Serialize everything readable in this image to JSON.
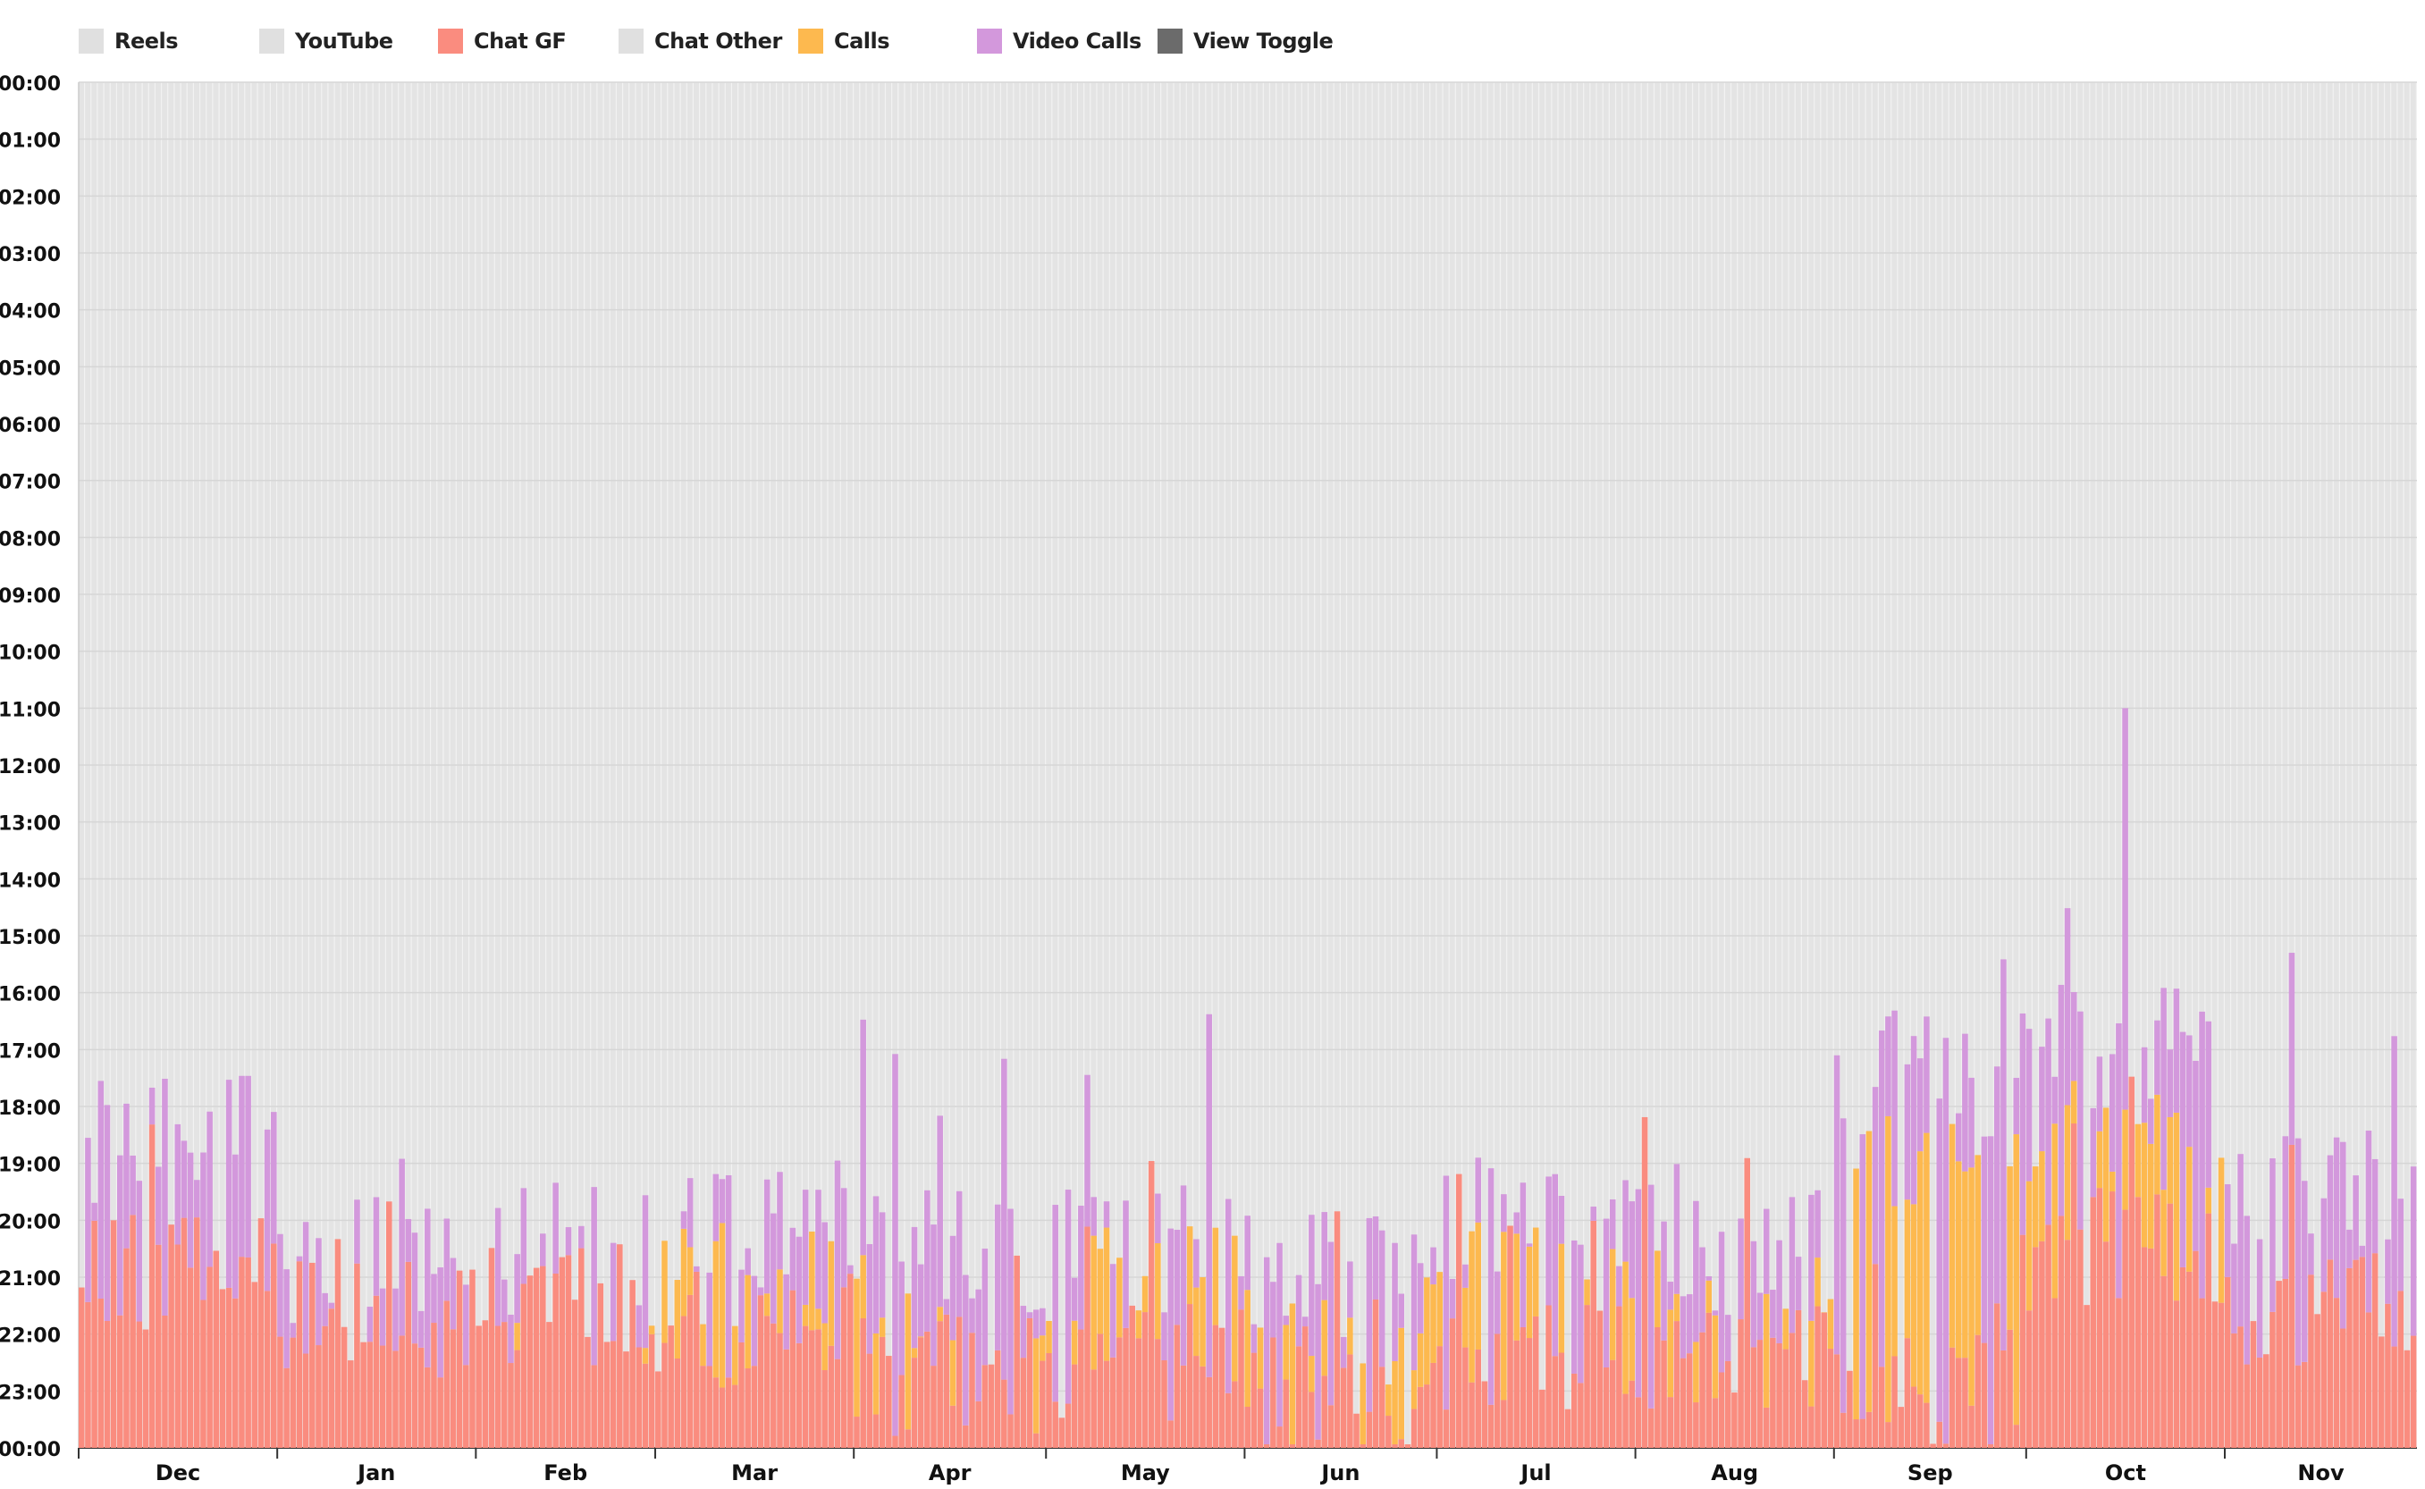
{
  "legend": [
    {
      "label": "Reels",
      "color": "#e0e0e0"
    },
    {
      "label": "YouTube",
      "color": "#e0e0e0"
    },
    {
      "label": "Chat GF",
      "color": "#fa8c7f"
    },
    {
      "label": "Chat Other",
      "color": "#e0e0e0"
    },
    {
      "label": "Calls",
      "color": "#fdb94f"
    },
    {
      "label": "Video Calls",
      "color": "#d398dc"
    },
    {
      "label": "View Toggle",
      "color": "#6b6b6b"
    }
  ],
  "chart_data": {
    "type": "bar",
    "stacked": true,
    "orientation": "vertical",
    "x_axis": "date",
    "y_axis": "time of day",
    "y_reversed": true,
    "ylim": [
      "00:00",
      "00:00"
    ],
    "y_ticks": [
      "00:00",
      "01:00",
      "02:00",
      "03:00",
      "04:00",
      "05:00",
      "06:00",
      "07:00",
      "08:00",
      "09:00",
      "10:00",
      "11:00",
      "12:00",
      "13:00",
      "14:00",
      "15:00",
      "16:00",
      "17:00",
      "18:00",
      "19:00",
      "20:00",
      "21:00",
      "22:00",
      "23:00",
      "00:00"
    ],
    "x_ticks": [
      "Dec",
      "Jan",
      "Feb",
      "Mar",
      "Apr",
      "May",
      "Jun",
      "Jul",
      "Aug",
      "Sep",
      "Oct",
      "Nov"
    ],
    "grid": true,
    "legend_position": "top-left",
    "series": [
      {
        "name": "Chat GF",
        "color": "#fa8c7f",
        "monthly_typical_start": {
          "Dec": "21:00",
          "Jan": "21:45",
          "Feb": "21:30",
          "Mar": "22:00",
          "Apr": "22:45",
          "May": "22:30",
          "Jun": "23:00",
          "Jul": "22:30",
          "Aug": "22:30",
          "Sep": "23:00",
          "Oct": "20:30",
          "Nov": "21:30"
        }
      },
      {
        "name": "Calls",
        "color": "#fdb94f",
        "monthly_typical_start": {
          "Dec": null,
          "Jan": null,
          "Feb": "22:45",
          "Mar": "21:00",
          "Apr": "21:30",
          "May": "21:00",
          "Jun": "22:00",
          "Jul": "21:00",
          "Aug": "21:30",
          "Sep": "19:00",
          "Oct": "18:30",
          "Nov": null
        }
      },
      {
        "name": "Video Calls",
        "color": "#d398dc",
        "monthly_typical_start": {
          "Dec": "18:30",
          "Jan": "20:45",
          "Feb": "20:30",
          "Mar": "20:00",
          "Apr": "20:30",
          "May": "20:30",
          "Jun": "21:00",
          "Jul": "20:00",
          "Aug": "20:30",
          "Sep": "17:30",
          "Oct": "17:00",
          "Nov": "19:30"
        },
        "max_start": "11:00"
      }
    ],
    "days": 365
  }
}
